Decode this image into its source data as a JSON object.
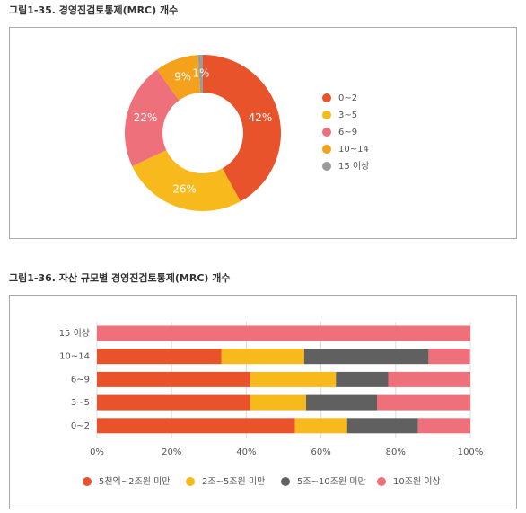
{
  "chart_data": [
    {
      "type": "donut",
      "title": "그림1-35. 경영진검토통제(MRC) 개수",
      "categories": [
        "0~2",
        "3~5",
        "6~9",
        "10~14",
        "15 이상"
      ],
      "values": [
        42,
        26,
        22,
        9,
        1
      ],
      "value_labels": [
        "42%",
        "26%",
        "22%",
        "9%",
        "1%"
      ],
      "colors": [
        "#e8532b",
        "#f8b91c",
        "#ee707b",
        "#f4a11b",
        "#9b9b9b"
      ]
    },
    {
      "type": "bar",
      "orientation": "horizontal",
      "stacked": true,
      "title": "그림1-36. 자산 규모별 경영진검토통제(MRC) 개수",
      "categories": [
        "15 이상",
        "10~14",
        "6~9",
        "3~5",
        "0~2"
      ],
      "series": [
        {
          "name": "5천억~2조원 미만",
          "color": "#e8532b",
          "values": [
            0,
            33.3,
            41,
            41,
            53
          ]
        },
        {
          "name": "2조~5조원 미만",
          "color": "#f8b91c",
          "values": [
            0,
            22.2,
            23,
            15,
            14
          ]
        },
        {
          "name": "5조~10조원 미만",
          "color": "#606060",
          "values": [
            0,
            33.3,
            14,
            19,
            19
          ]
        },
        {
          "name": "10조원 이상",
          "color": "#ee707b",
          "values": [
            100,
            11.1,
            22,
            25,
            14
          ]
        }
      ],
      "xlim": [
        0,
        100
      ],
      "xticks": [
        {
          "value": 0,
          "label": "0%"
        },
        {
          "value": 20,
          "label": "20%"
        },
        {
          "value": 40,
          "label": "40%"
        },
        {
          "value": 60,
          "label": "60%"
        },
        {
          "value": 80,
          "label": "80%"
        },
        {
          "value": 100,
          "label": "100%"
        }
      ]
    }
  ]
}
